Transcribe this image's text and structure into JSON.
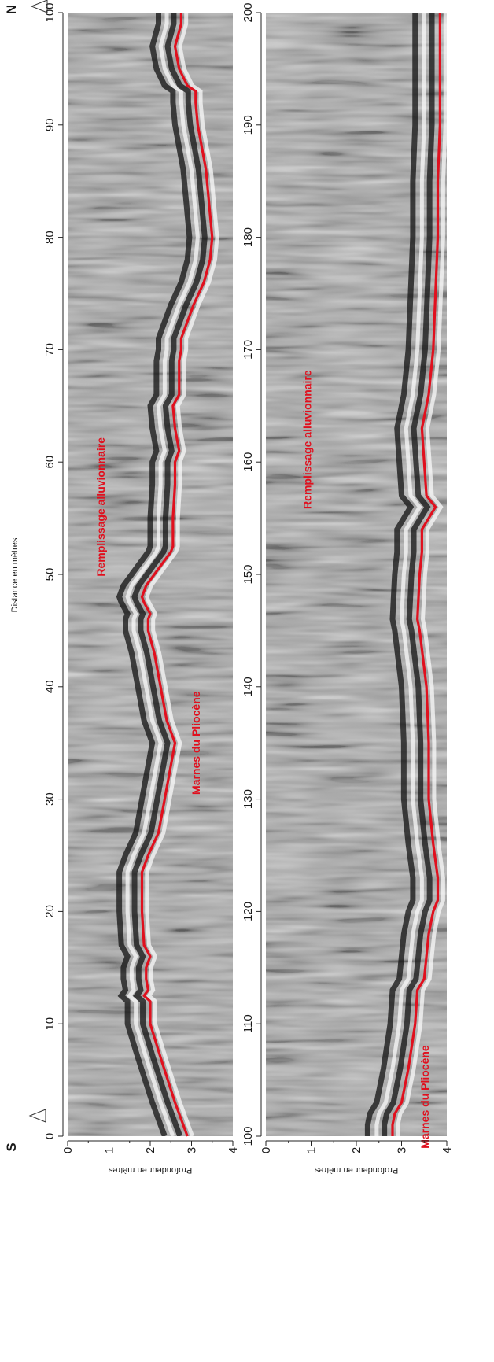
{
  "figure": {
    "x_axis_title": "Distance en mètres",
    "orientation_start": "S",
    "orientation_end": "N"
  },
  "colors": {
    "interface_line": "#e0101e",
    "annotation": "#e0101e",
    "axis": "#222222",
    "radargram_background": "#a9a9a9"
  },
  "chart_data": [
    {
      "type": "line",
      "panel": "top",
      "xlabel": "Distance en mètres",
      "ylabel": "Profondeur en mètres",
      "xlim": [
        0,
        100
      ],
      "ylim": [
        0,
        4
      ],
      "y_inverted": true,
      "x_ticks": [
        0,
        10,
        20,
        30,
        40,
        50,
        60,
        70,
        80,
        90,
        100
      ],
      "y_ticks": [
        0,
        1,
        2,
        3,
        4
      ],
      "annotations": [
        {
          "text": "Remplissage alluvionnaire",
          "x": 56,
          "depth": 0.9
        },
        {
          "text": "Marnes du Pliocène",
          "x": 35,
          "depth": 3.2
        }
      ],
      "series": [
        {
          "x": [
            0,
            3,
            7,
            10,
            12,
            12.5,
            13,
            14,
            15,
            16,
            17,
            20,
            23,
            23.5,
            25,
            27,
            30,
            33,
            35,
            35.5,
            37,
            40,
            43,
            45,
            46,
            46.5,
            47.5,
            48,
            49,
            50,
            52,
            52.5,
            55,
            58,
            60,
            61,
            63,
            65,
            66,
            69,
            70,
            71,
            72,
            74,
            76,
            78,
            80,
            82,
            84,
            86,
            88,
            90,
            92,
            93,
            93.5,
            95,
            96,
            97,
            99,
            100
          ],
          "y": [
            2.9,
            2.6,
            2.25,
            2.0,
            2.0,
            1.85,
            1.95,
            1.9,
            1.9,
            2.0,
            1.85,
            1.8,
            1.8,
            1.8,
            1.95,
            2.2,
            2.35,
            2.5,
            2.6,
            2.55,
            2.4,
            2.25,
            2.1,
            1.95,
            1.95,
            2.0,
            1.85,
            1.8,
            1.9,
            2.1,
            2.5,
            2.55,
            2.55,
            2.6,
            2.6,
            2.7,
            2.6,
            2.55,
            2.7,
            2.7,
            2.75,
            2.75,
            2.85,
            3.05,
            3.3,
            3.45,
            3.5,
            3.45,
            3.4,
            3.35,
            3.25,
            3.15,
            3.1,
            3.1,
            2.9,
            2.7,
            2.65,
            2.6,
            2.75,
            2.75
          ]
        }
      ]
    },
    {
      "type": "line",
      "panel": "bottom",
      "xlabel": "Distance en mètres",
      "ylabel": "Profondeur en mètres",
      "xlim": [
        100,
        200
      ],
      "ylim": [
        0,
        4
      ],
      "y_inverted": true,
      "x_ticks": [
        100,
        110,
        120,
        130,
        140,
        150,
        160,
        170,
        180,
        190,
        200
      ],
      "y_ticks": [
        0,
        1,
        2,
        3,
        4
      ],
      "annotations": [
        {
          "text": "Remplissage alluvionnaire",
          "x": 162,
          "depth": 1.0
        },
        {
          "text": "Marnes du Pliocène",
          "x": 103.5,
          "depth": 3.6
        }
      ],
      "series": [
        {
          "x": [
            100,
            101,
            102,
            103,
            106,
            110,
            113,
            114,
            116,
            118,
            120,
            121,
            123,
            126,
            130,
            135,
            140,
            145,
            146,
            150,
            152,
            154,
            155,
            156,
            157,
            160,
            163,
            166,
            170,
            175,
            180,
            185,
            190,
            195,
            200
          ],
          "y": [
            2.8,
            2.8,
            2.85,
            3.0,
            3.15,
            3.3,
            3.35,
            3.5,
            3.55,
            3.6,
            3.7,
            3.8,
            3.8,
            3.7,
            3.6,
            3.6,
            3.55,
            3.4,
            3.35,
            3.4,
            3.45,
            3.45,
            3.6,
            3.75,
            3.55,
            3.5,
            3.45,
            3.6,
            3.7,
            3.75,
            3.8,
            3.8,
            3.85,
            3.85,
            3.85
          ]
        }
      ]
    }
  ]
}
